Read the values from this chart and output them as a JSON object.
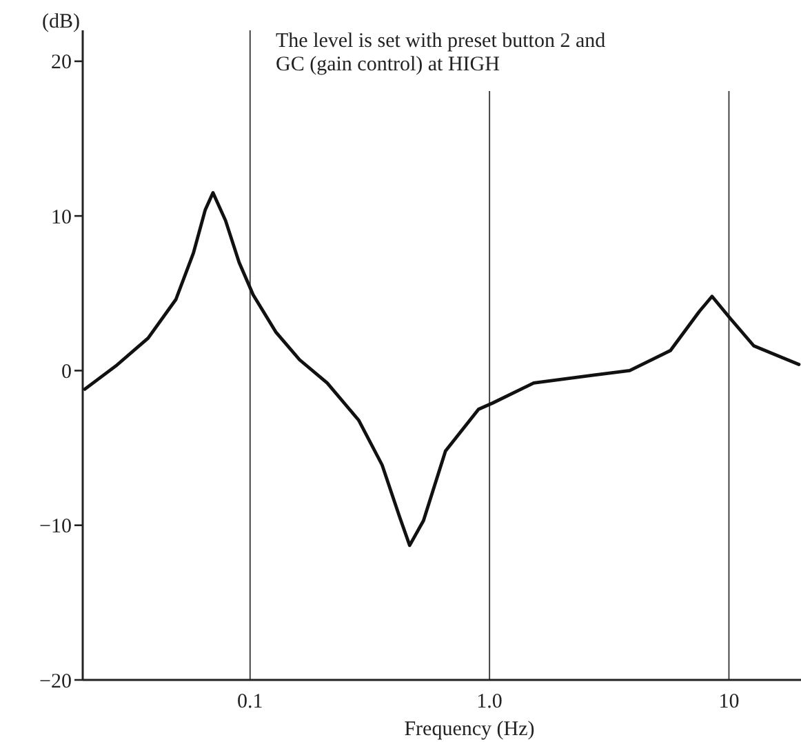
{
  "chart_data": {
    "type": "line",
    "xlabel": "Frequency (Hz)",
    "ylabel": "(dB)",
    "log": "x",
    "grid": "x",
    "line_style": "solid",
    "marker": "none",
    "xlim": [
      0.02,
      20
    ],
    "xticks": [
      0.1,
      {
        "value": 1,
        "label": "1.0"
      },
      10
    ],
    "ylim": [
      -20,
      22
    ],
    "yticks": [
      -20,
      -10,
      0,
      10,
      20
    ],
    "annotations": [
      "The level is set with preset button 2 and GC (gain control) at HIGH"
    ],
    "series": [
      {
        "color": "#111111",
        "x": [
          0.0204,
          0.0275,
          0.0375,
          0.049,
          0.058,
          0.065,
          0.07,
          0.079,
          0.09,
          0.103,
          0.128,
          0.161,
          0.21,
          0.284,
          0.356,
          0.42,
          0.464,
          0.53,
          0.655,
          0.9,
          1.03,
          1.53,
          2.7,
          3.85,
          5.7,
          7.5,
          8.5,
          10.1,
          12.7,
          19.6
        ],
        "values": [
          -1.2,
          0.3,
          2.1,
          4.6,
          7.6,
          10.4,
          11.5,
          9.7,
          7,
          4.9,
          2.5,
          0.7,
          -0.8,
          -3.2,
          -6.1,
          -9.4,
          -11.3,
          -9.7,
          -5.2,
          -2.5,
          -2.1,
          -0.8,
          -0.3,
          0,
          1.3,
          3.8,
          4.8,
          3.4,
          1.6,
          0.4
        ]
      }
    ]
  }
}
